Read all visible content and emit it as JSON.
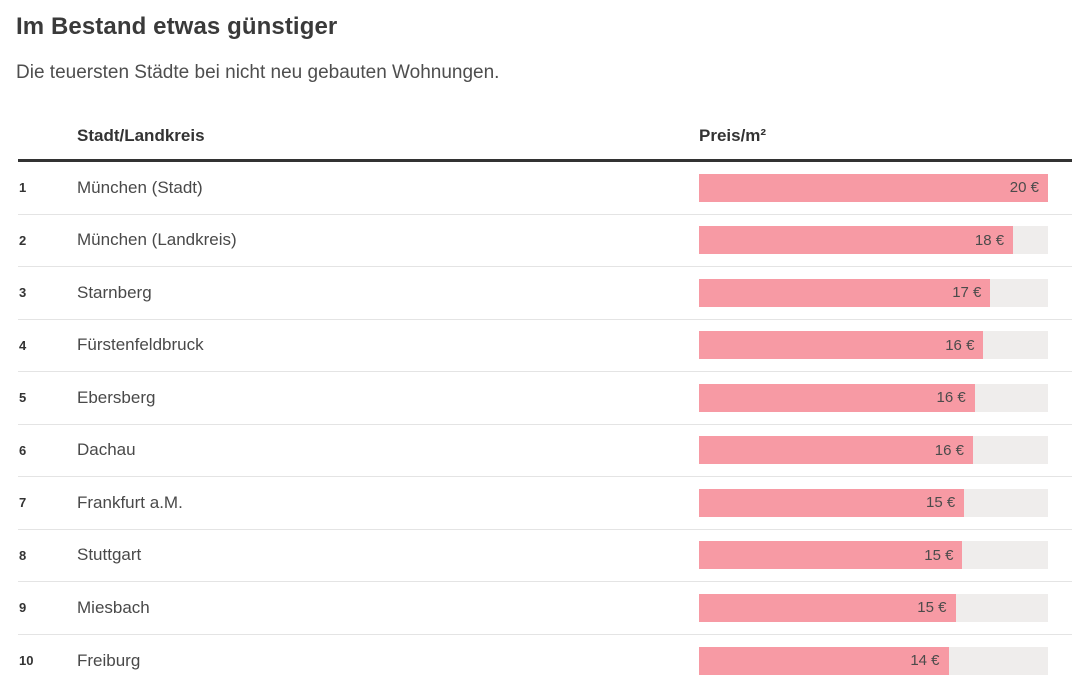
{
  "chart_data": {
    "type": "bar",
    "title": "Im Bestand etwas günstiger",
    "subtitle": "Die teuersten Städte bei nicht neu gebauten Wohnungen.",
    "columns": {
      "rank": "",
      "name": "Stadt/Landkreis",
      "value": "Preis/m²"
    },
    "xlim": [
      0,
      20
    ],
    "legend": "none",
    "grid": "off",
    "bar_value_position": "inside-right",
    "rows": [
      {
        "rank": "1",
        "name": "München (Stadt)",
        "value": 20.0,
        "value_label": "20 €"
      },
      {
        "rank": "2",
        "name": "München (Landkreis)",
        "value": 18.0,
        "value_label": "18 €"
      },
      {
        "rank": "3",
        "name": "Starnberg",
        "value": 16.7,
        "value_label": "17 €"
      },
      {
        "rank": "4",
        "name": "Fürstenfeldbruck",
        "value": 16.3,
        "value_label": "16 €"
      },
      {
        "rank": "5",
        "name": "Ebersberg",
        "value": 15.8,
        "value_label": "16 €"
      },
      {
        "rank": "6",
        "name": "Dachau",
        "value": 15.7,
        "value_label": "16 €"
      },
      {
        "rank": "7",
        "name": "Frankfurt a.M.",
        "value": 15.2,
        "value_label": "15 €"
      },
      {
        "rank": "8",
        "name": "Stuttgart",
        "value": 15.1,
        "value_label": "15 €"
      },
      {
        "rank": "9",
        "name": "Miesbach",
        "value": 14.7,
        "value_label": "15 €"
      },
      {
        "rank": "10",
        "name": "Freiburg",
        "value": 14.3,
        "value_label": "14 €"
      }
    ],
    "colors": {
      "bar": "#f79aa4",
      "track": "#efedec",
      "header_rule": "#333333",
      "separator": "#e4e4e4",
      "title_text": "#3a3a3a",
      "body_text": "#494949"
    }
  }
}
